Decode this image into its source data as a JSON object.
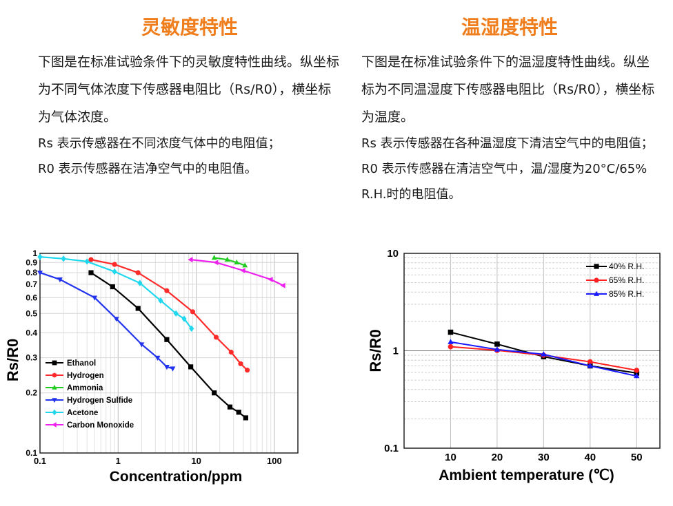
{
  "left": {
    "title": "灵敏度特性",
    "paragraph": "下图是在标准试验条件下的灵敏度特性曲线。纵坐标为不同气体浓度下传感器电阻比（Rs/R0），横坐标为气体浓度。",
    "note1": "Rs 表示传感器在不同浓度气体中的电阻值；",
    "note2": "R0 表示传感器在洁净空气中的电阻值。"
  },
  "right": {
    "title": "温湿度特性",
    "paragraph": "下图是在标准试验条件下的温湿度特性曲线。纵坐标为不同温湿度下传感器电阻比（Rs/R0），横坐标为温度。",
    "note1": "Rs 表示传感器在各种温湿度下清洁空气中的电阻值；R0 表示传感器在清洁空气中，温/湿度为20°C/65% R.H.时的电阻值。"
  },
  "chart_data": [
    {
      "type": "line",
      "xscale": "log",
      "yscale": "log",
      "xlabel": "Concentration/ppm",
      "ylabel": "Rs/R0",
      "xlim": [
        0.1,
        200
      ],
      "ylim": [
        0.1,
        1
      ],
      "xticks": [
        "0.1",
        "1",
        "10",
        "100"
      ],
      "yticks": [
        "0.1",
        "0.2",
        "0.3",
        "0.4",
        "0.5",
        "0.6",
        "0.7",
        "0.8",
        "0.9",
        "1"
      ],
      "grid": true,
      "legend_position": "bottom-left",
      "series": [
        {
          "name": "Ethanol",
          "color": "#000000",
          "marker": "square",
          "x": [
            0.45,
            0.85,
            1.8,
            4.2,
            8.5,
            17,
            27,
            35,
            43
          ],
          "y": [
            0.8,
            0.68,
            0.53,
            0.37,
            0.27,
            0.2,
            0.17,
            0.16,
            0.15
          ]
        },
        {
          "name": "Hydrogen",
          "color": "#ff2a2a",
          "marker": "circle",
          "x": [
            0.45,
            0.9,
            1.8,
            4.2,
            9.0,
            18,
            28,
            37,
            45
          ],
          "y": [
            0.93,
            0.88,
            0.8,
            0.65,
            0.51,
            0.38,
            0.32,
            0.28,
            0.26
          ]
        },
        {
          "name": "Ammonia",
          "color": "#22cc22",
          "marker": "triangle-up",
          "x": [
            17,
            25,
            33,
            42
          ],
          "y": [
            0.95,
            0.93,
            0.9,
            0.87
          ]
        },
        {
          "name": "Hydrogen Sulfide",
          "color": "#2233ee",
          "marker": "triangle-down",
          "x": [
            0.1,
            0.18,
            0.5,
            0.95,
            2.0,
            3.2,
            4.2,
            5.0
          ],
          "y": [
            0.8,
            0.74,
            0.6,
            0.47,
            0.35,
            0.3,
            0.27,
            0.265
          ]
        },
        {
          "name": "Acetone",
          "color": "#1fd8ee",
          "marker": "diamond",
          "x": [
            0.1,
            0.2,
            0.4,
            0.9,
            1.9,
            3.5,
            5.5,
            7.0,
            8.7
          ],
          "y": [
            0.96,
            0.94,
            0.91,
            0.81,
            0.71,
            0.58,
            0.5,
            0.47,
            0.42
          ]
        },
        {
          "name": "Carbon Monoxide",
          "color": "#ee22ee",
          "marker": "triangle-left",
          "x": [
            8.5,
            18,
            40,
            90,
            130
          ],
          "y": [
            0.93,
            0.9,
            0.82,
            0.74,
            0.69
          ]
        }
      ]
    },
    {
      "type": "line",
      "yscale": "log",
      "xlabel": "Ambient temperature (℃)",
      "ylabel": "Rs/R0",
      "xlim": [
        0,
        55
      ],
      "ylim": [
        0.1,
        10
      ],
      "xticks": [
        "10",
        "20",
        "30",
        "40",
        "50"
      ],
      "yticks": [
        "0.1",
        "1",
        "10"
      ],
      "grid": true,
      "legend_position": "top-right",
      "series": [
        {
          "name": "40% R.H.",
          "color": "#000000",
          "marker": "square",
          "x": [
            10,
            20,
            30,
            40,
            50
          ],
          "y": [
            1.55,
            1.17,
            0.87,
            0.7,
            0.59
          ]
        },
        {
          "name": "65% R.H.",
          "color": "#ff2020",
          "marker": "circle",
          "x": [
            10,
            20,
            30,
            40,
            50
          ],
          "y": [
            1.1,
            1.01,
            0.9,
            0.77,
            0.63
          ]
        },
        {
          "name": "85% R.H.",
          "color": "#1a1aff",
          "marker": "triangle-up",
          "x": [
            10,
            20,
            30,
            40,
            50
          ],
          "y": [
            1.23,
            1.03,
            0.92,
            0.7,
            0.55
          ]
        }
      ]
    }
  ]
}
